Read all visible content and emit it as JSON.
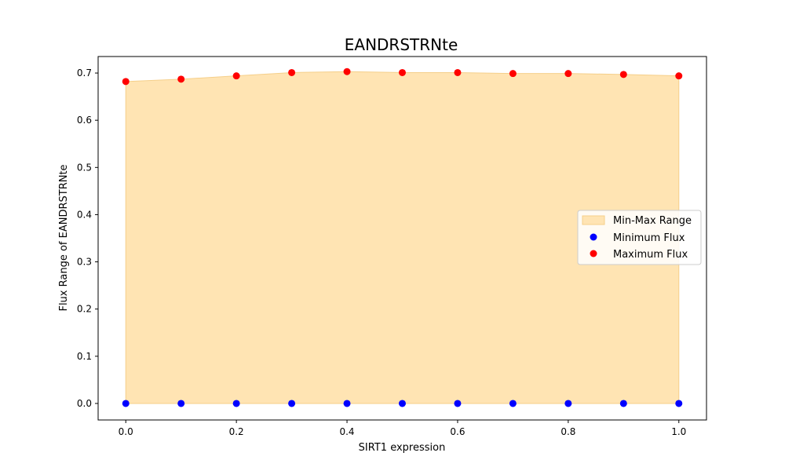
{
  "chart_data": {
    "type": "scatter",
    "title": "EANDRSTRNte",
    "xlabel": "SIRT1 expression",
    "ylabel": "Flux Range of EANDRSTRNte",
    "xlim": [
      -0.05,
      1.05
    ],
    "ylim": [
      -0.035,
      0.735
    ],
    "xticks": [
      0.0,
      0.2,
      0.4,
      0.6,
      0.8,
      1.0
    ],
    "yticks": [
      0.0,
      0.1,
      0.2,
      0.3,
      0.4,
      0.5,
      0.6,
      0.7
    ],
    "xtick_labels": [
      "0.0",
      "0.2",
      "0.4",
      "0.6",
      "0.8",
      "1.0"
    ],
    "ytick_labels": [
      "0.0",
      "0.1",
      "0.2",
      "0.3",
      "0.4",
      "0.5",
      "0.6",
      "0.7"
    ],
    "x": [
      0.0,
      0.1,
      0.2,
      0.3,
      0.4,
      0.5,
      0.6,
      0.7,
      0.8,
      0.9,
      1.0
    ],
    "series": [
      {
        "name": "Min-Max Range",
        "kind": "area",
        "color": "#ffe4b3",
        "edge_color": "#f5cf8a"
      },
      {
        "name": "Minimum Flux",
        "kind": "scatter",
        "color": "#0000ff",
        "values": [
          0.0,
          0.0,
          0.0,
          0.0,
          0.0,
          0.0,
          0.0,
          0.0,
          0.0,
          0.0,
          0.0
        ]
      },
      {
        "name": "Maximum Flux",
        "kind": "scatter",
        "color": "#ff0000",
        "values": [
          0.682,
          0.687,
          0.694,
          0.701,
          0.703,
          0.701,
          0.701,
          0.699,
          0.699,
          0.697,
          0.694
        ]
      }
    ],
    "legend": {
      "position": "center-right",
      "entries": [
        "Min-Max Range",
        "Minimum Flux",
        "Maximum Flux"
      ]
    },
    "grid": false
  }
}
